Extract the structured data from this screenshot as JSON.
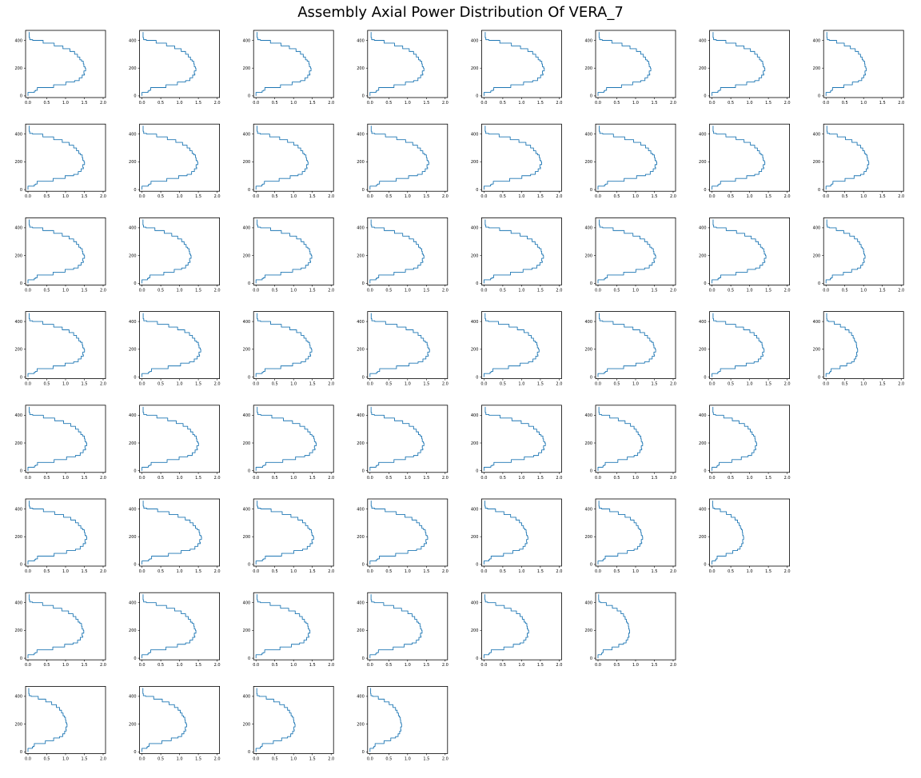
{
  "title": "Assembly Axial Power Distribution Of VERA_7",
  "chart_data": {
    "type": "line",
    "title": "Assembly Axial Power Distribution Of VERA_7",
    "grid": false,
    "series_color": "#1f77b4",
    "layout_rows": [
      8,
      8,
      8,
      8,
      7,
      7,
      6,
      4
    ],
    "xlim": [
      0,
      2.0
    ],
    "ylim": [
      0,
      450
    ],
    "xticks": [
      "0.0",
      "0.5",
      "1.0",
      "1.5",
      "2.0"
    ],
    "yticks": [
      "0",
      "200",
      "400"
    ],
    "axial_heights": [
      0,
      11,
      25,
      35,
      40,
      60,
      80,
      100,
      110,
      130,
      150,
      160,
      180,
      200,
      210,
      230,
      250,
      260,
      280,
      300,
      320,
      340,
      360,
      380,
      400,
      405,
      420,
      440,
      460
    ],
    "shape_fractions": [
      0,
      0,
      0.11,
      0.13,
      0.16,
      0.44,
      0.65,
      0.8,
      0.88,
      0.93,
      0.97,
      0.96,
      0.99,
      0.98,
      0.96,
      0.95,
      0.92,
      0.89,
      0.85,
      0.8,
      0.72,
      0.6,
      0.45,
      0.26,
      0.08,
      0.03,
      0.02,
      0.02,
      0.02
    ],
    "peak_values": [
      [
        1.55,
        1.45,
        1.48,
        1.45,
        1.62,
        1.42,
        1.42,
        1.08
      ],
      [
        1.52,
        1.5,
        1.4,
        1.58,
        1.55,
        1.58,
        1.42,
        1.15
      ],
      [
        1.52,
        1.32,
        1.5,
        1.45,
        1.6,
        1.55,
        1.45,
        1.05
      ],
      [
        1.52,
        1.58,
        1.5,
        1.6,
        1.48,
        1.55,
        1.4,
        0.85
      ],
      [
        1.58,
        1.52,
        1.62,
        1.45,
        1.65,
        1.2,
        1.2
      ],
      [
        1.58,
        1.6,
        1.55,
        1.55,
        1.18,
        1.2,
        0.85
      ],
      [
        1.5,
        1.45,
        1.45,
        1.4,
        1.2,
        0.85
      ],
      [
        1.05,
        1.2,
        1.05,
        0.85
      ]
    ]
  }
}
